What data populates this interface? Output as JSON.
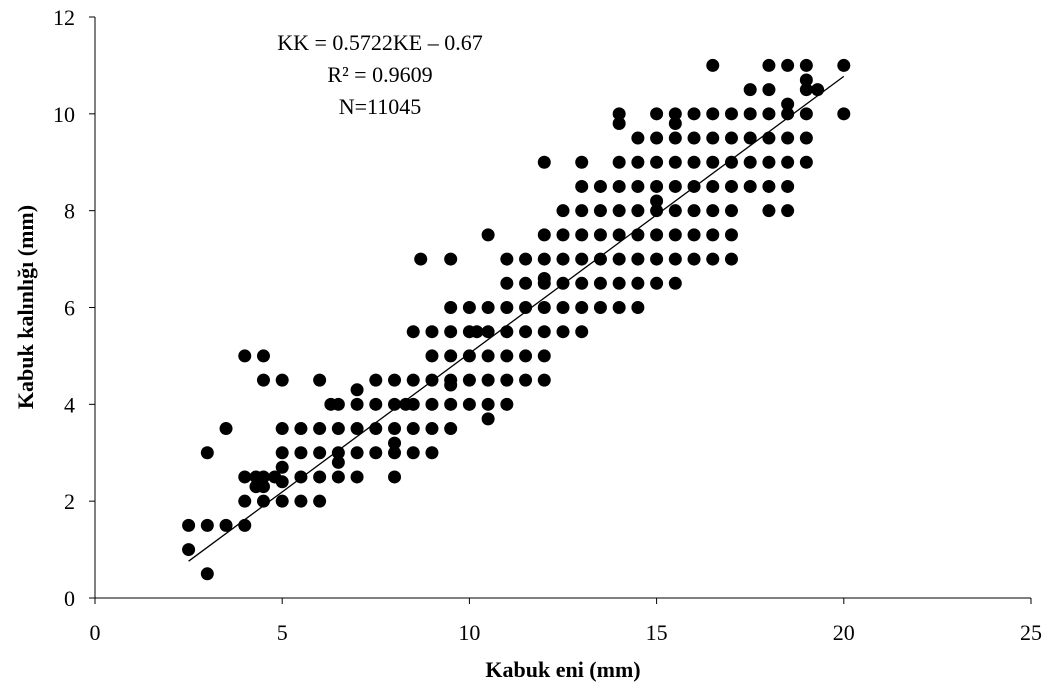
{
  "chart_data": {
    "type": "scatter",
    "xlabel": "Kabuk eni (mm)",
    "ylabel": "Kabuk kalınlığı (mm)",
    "xlim": [
      0,
      25
    ],
    "ylim": [
      0,
      12
    ],
    "x_ticks": [
      "0",
      "5",
      "10",
      "15",
      "20",
      "25"
    ],
    "y_ticks": [
      "0",
      "2",
      "4",
      "6",
      "8",
      "10",
      "12"
    ],
    "annotation": {
      "equation": "KK = 0.5722KE – 0.67",
      "r_squared": "R² = 0.9609",
      "n": "N=11045"
    },
    "trendline": {
      "slope": 0.5722,
      "intercept": -0.67,
      "x_range": [
        2.5,
        20
      ]
    },
    "grid": false,
    "marker_color": "#000000",
    "series": [
      {
        "points": [
          [
            2.5,
            1.0
          ],
          [
            2.5,
            1.5
          ],
          [
            3,
            0.5
          ],
          [
            3,
            1.5
          ],
          [
            3,
            3.0
          ],
          [
            3.5,
            1.5
          ],
          [
            3.5,
            3.5
          ],
          [
            4,
            1.5
          ],
          [
            4,
            2.0
          ],
          [
            4,
            2.5
          ],
          [
            4,
            5.0
          ],
          [
            4.3,
            2.3
          ],
          [
            4.3,
            2.5
          ],
          [
            4.5,
            2.0
          ],
          [
            4.5,
            2.3
          ],
          [
            4.5,
            2.5
          ],
          [
            4.5,
            4.5
          ],
          [
            4.5,
            5.0
          ],
          [
            4.8,
            2.5
          ],
          [
            5,
            2.0
          ],
          [
            5,
            2.4
          ],
          [
            5,
            2.7
          ],
          [
            5,
            3.0
          ],
          [
            5,
            3.5
          ],
          [
            5,
            4.5
          ],
          [
            5.5,
            2.0
          ],
          [
            5.5,
            2.5
          ],
          [
            5.5,
            3.0
          ],
          [
            5.5,
            3.5
          ],
          [
            6,
            2.0
          ],
          [
            6,
            2.5
          ],
          [
            6,
            3.0
          ],
          [
            6,
            3.5
          ],
          [
            6,
            4.5
          ],
          [
            6.5,
            2.5
          ],
          [
            6.5,
            2.8
          ],
          [
            6.5,
            3.0
          ],
          [
            6.5,
            3.5
          ],
          [
            6.5,
            4.0
          ],
          [
            6.3,
            4.0
          ],
          [
            7,
            2.5
          ],
          [
            7,
            3.0
          ],
          [
            7,
            3.5
          ],
          [
            7,
            4.0
          ],
          [
            7,
            4.3
          ],
          [
            7.5,
            3.0
          ],
          [
            7.5,
            3.5
          ],
          [
            7.5,
            4.0
          ],
          [
            7.5,
            4.5
          ],
          [
            8,
            2.5
          ],
          [
            8,
            3.0
          ],
          [
            8,
            3.2
          ],
          [
            8,
            3.5
          ],
          [
            8,
            4.0
          ],
          [
            8,
            4.5
          ],
          [
            8.3,
            4.0
          ],
          [
            8.5,
            3.0
          ],
          [
            8.5,
            3.5
          ],
          [
            8.5,
            4.0
          ],
          [
            8.5,
            4.5
          ],
          [
            8.5,
            5.5
          ],
          [
            8.7,
            7.0
          ],
          [
            9,
            3.0
          ],
          [
            9,
            3.5
          ],
          [
            9,
            4.0
          ],
          [
            9,
            4.5
          ],
          [
            9,
            5.0
          ],
          [
            9,
            5.5
          ],
          [
            9.5,
            3.5
          ],
          [
            9.5,
            4.0
          ],
          [
            9.5,
            4.4
          ],
          [
            9.5,
            4.5
          ],
          [
            9.5,
            5.0
          ],
          [
            9.5,
            5.5
          ],
          [
            9.5,
            6.0
          ],
          [
            9.5,
            7.0
          ],
          [
            10,
            4.0
          ],
          [
            10,
            4.5
          ],
          [
            10,
            5.0
          ],
          [
            10,
            5.5
          ],
          [
            10,
            6.0
          ],
          [
            10.2,
            5.5
          ],
          [
            10.5,
            3.7
          ],
          [
            10.5,
            4.0
          ],
          [
            10.5,
            4.5
          ],
          [
            10.5,
            5.0
          ],
          [
            10.5,
            5.5
          ],
          [
            10.5,
            6.0
          ],
          [
            10.5,
            7.5
          ],
          [
            11,
            4.0
          ],
          [
            11,
            4.5
          ],
          [
            11,
            5.0
          ],
          [
            11,
            5.5
          ],
          [
            11,
            6.0
          ],
          [
            11,
            6.5
          ],
          [
            11,
            7.0
          ],
          [
            11.5,
            4.5
          ],
          [
            11.5,
            5.0
          ],
          [
            11.5,
            5.5
          ],
          [
            11.5,
            6.0
          ],
          [
            11.5,
            6.5
          ],
          [
            11.5,
            7.0
          ],
          [
            12,
            4.5
          ],
          [
            12,
            5.0
          ],
          [
            12,
            5.5
          ],
          [
            12,
            6.0
          ],
          [
            12,
            6.5
          ],
          [
            12,
            6.6
          ],
          [
            12,
            7.0
          ],
          [
            12,
            7.5
          ],
          [
            12,
            9.0
          ],
          [
            12.5,
            5.5
          ],
          [
            12.5,
            6.0
          ],
          [
            12.5,
            6.5
          ],
          [
            12.5,
            7.0
          ],
          [
            12.5,
            7.5
          ],
          [
            12.5,
            8.0
          ],
          [
            13,
            5.5
          ],
          [
            13,
            6.0
          ],
          [
            13,
            6.5
          ],
          [
            13,
            7.0
          ],
          [
            13,
            7.5
          ],
          [
            13,
            8.0
          ],
          [
            13,
            8.5
          ],
          [
            13,
            9.0
          ],
          [
            13.5,
            6.0
          ],
          [
            13.5,
            6.5
          ],
          [
            13.5,
            7.0
          ],
          [
            13.5,
            7.5
          ],
          [
            13.5,
            8.0
          ],
          [
            13.5,
            8.5
          ],
          [
            14,
            6.0
          ],
          [
            14,
            6.5
          ],
          [
            14,
            7.0
          ],
          [
            14,
            7.5
          ],
          [
            14,
            8.0
          ],
          [
            14,
            8.5
          ],
          [
            14,
            9.0
          ],
          [
            14,
            9.8
          ],
          [
            14,
            10.0
          ],
          [
            14.5,
            6.0
          ],
          [
            14.5,
            6.5
          ],
          [
            14.5,
            7.0
          ],
          [
            14.5,
            7.5
          ],
          [
            14.5,
            8.0
          ],
          [
            14.5,
            8.5
          ],
          [
            14.5,
            9.0
          ],
          [
            14.5,
            9.5
          ],
          [
            15,
            6.5
          ],
          [
            15,
            7.0
          ],
          [
            15,
            7.5
          ],
          [
            15,
            8.0
          ],
          [
            15,
            8.2
          ],
          [
            15,
            8.5
          ],
          [
            15,
            9.0
          ],
          [
            15,
            9.5
          ],
          [
            15,
            10.0
          ],
          [
            15.5,
            6.5
          ],
          [
            15.5,
            7.0
          ],
          [
            15.5,
            7.5
          ],
          [
            15.5,
            8.0
          ],
          [
            15.5,
            8.5
          ],
          [
            15.5,
            9.0
          ],
          [
            15.5,
            9.5
          ],
          [
            15.5,
            9.8
          ],
          [
            15.5,
            10.0
          ],
          [
            16,
            7.0
          ],
          [
            16,
            7.5
          ],
          [
            16,
            8.0
          ],
          [
            16,
            8.5
          ],
          [
            16,
            9.0
          ],
          [
            16,
            9.5
          ],
          [
            16,
            10.0
          ],
          [
            16.5,
            7.0
          ],
          [
            16.5,
            7.5
          ],
          [
            16.5,
            8.0
          ],
          [
            16.5,
            8.5
          ],
          [
            16.5,
            9.0
          ],
          [
            16.5,
            9.5
          ],
          [
            16.5,
            10.0
          ],
          [
            16.5,
            11.0
          ],
          [
            17,
            7.0
          ],
          [
            17,
            7.5
          ],
          [
            17,
            8.0
          ],
          [
            17,
            8.5
          ],
          [
            17,
            9.0
          ],
          [
            17,
            9.5
          ],
          [
            17,
            10.0
          ],
          [
            17.5,
            8.5
          ],
          [
            17.5,
            9.0
          ],
          [
            17.5,
            9.5
          ],
          [
            17.5,
            10.0
          ],
          [
            17.5,
            10.5
          ],
          [
            18,
            8.0
          ],
          [
            18,
            8.5
          ],
          [
            18,
            9.0
          ],
          [
            18,
            9.5
          ],
          [
            18,
            10.0
          ],
          [
            18,
            10.5
          ],
          [
            18,
            11.0
          ],
          [
            18.5,
            8.0
          ],
          [
            18.5,
            8.5
          ],
          [
            18.5,
            9.0
          ],
          [
            18.5,
            9.5
          ],
          [
            18.5,
            10.0
          ],
          [
            18.5,
            10.2
          ],
          [
            18.5,
            11.0
          ],
          [
            19,
            9.0
          ],
          [
            19,
            9.5
          ],
          [
            19,
            10.0
          ],
          [
            19,
            10.5
          ],
          [
            19,
            10.7
          ],
          [
            19,
            11.0
          ],
          [
            19.3,
            10.5
          ],
          [
            20,
            10.0
          ],
          [
            20,
            11.0
          ]
        ]
      }
    ]
  }
}
